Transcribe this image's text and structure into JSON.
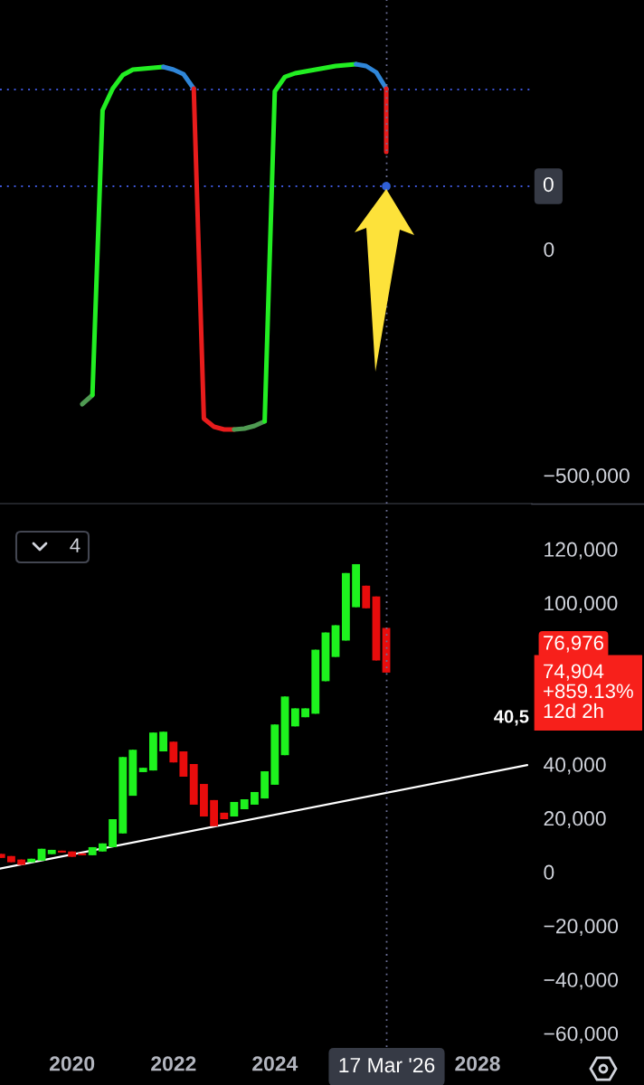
{
  "chart_data": [
    {
      "type": "line",
      "xlim": [
        "2018-07-31",
        "2029-01-26"
      ],
      "ylim": [
        -558000,
        556000
      ],
      "yticks": [
        {
          "value": 0,
          "label": "0"
        },
        {
          "value": -500000,
          "label": "−500,000"
        }
      ],
      "tick_labels": "y",
      "series": [
        {
          "color": "#4f9a52",
          "x": [
            "2020-03-14",
            "2020-05-27"
          ],
          "values": [
            -338000,
            -318000
          ]
        },
        {
          "color": "#22ee22",
          "x": [
            "2020-05-27",
            "2020-08-08",
            "2020-10-20",
            "2021-01-01",
            "2021-03-14",
            "2021-05-27",
            "2021-08-08",
            "2021-10-20"
          ],
          "values": [
            -318000,
            312000,
            360000,
            390000,
            402000,
            404000,
            406000,
            408000
          ]
        },
        {
          "color": "#2f86d8",
          "x": [
            "2021-10-20",
            "2022-01-01",
            "2022-03-14",
            "2022-05-27"
          ],
          "values": [
            408000,
            402000,
            392000,
            360000
          ]
        },
        {
          "color": "#e81c1c",
          "x": [
            "2022-05-27",
            "2022-08-08",
            "2022-10-20",
            "2023-01-01",
            "2023-03-14"
          ],
          "values": [
            360000,
            -370000,
            -388000,
            -394000,
            -394000
          ]
        },
        {
          "color": "#4f9a52",
          "x": [
            "2023-03-14",
            "2023-05-27",
            "2023-08-08",
            "2023-10-20"
          ],
          "values": [
            -394000,
            -392000,
            -386000,
            -376000
          ]
        },
        {
          "color": "#22ee22",
          "x": [
            "2023-10-20",
            "2024-01-01",
            "2024-03-14",
            "2024-05-27",
            "2024-08-08",
            "2024-10-20",
            "2025-01-01",
            "2025-03-14",
            "2025-05-27",
            "2025-08-08"
          ],
          "values": [
            -376000,
            354000,
            386000,
            394000,
            398000,
            402000,
            406000,
            410000,
            412000,
            414000
          ]
        },
        {
          "color": "#2f86d8",
          "x": [
            "2025-08-08",
            "2025-10-20",
            "2026-01-01",
            "2026-03-14"
          ],
          "values": [
            414000,
            410000,
            396000,
            360000
          ]
        },
        {
          "color": "#e81c1c",
          "x": [
            "2026-03-14",
            "2026-03-14"
          ],
          "values": [
            360000,
            220000
          ]
        },
        {
          "type": "scatter",
          "marker": "circle",
          "color": "#2f5fd6",
          "x": [
            "2026-03-14"
          ],
          "values": [
            144000
          ]
        }
      ],
      "ref_lines": [
        {
          "axis": "y",
          "value": 358000,
          "color": "#3d55d6",
          "line_style": "dotted"
        },
        {
          "axis": "y",
          "value": 144000,
          "color": "#3d55d6",
          "line_style": "dotted"
        },
        {
          "axis": "x",
          "value": "2026-03-17",
          "color": "#6b6f96",
          "line_style": "dotted"
        }
      ],
      "annotations": [
        "0"
      ]
    },
    {
      "type": "candlestick",
      "xlim": [
        "2018-07-31",
        "2029-01-26"
      ],
      "ylim": [
        -64300,
        136700
      ],
      "xticks": [
        {
          "value": "2020-01-01",
          "label": "2020"
        },
        {
          "value": "2022-01-01",
          "label": "2022"
        },
        {
          "value": "2024-01-01",
          "label": "2024"
        },
        {
          "value": "2028-01-01",
          "label": "2028"
        }
      ],
      "yticks": [
        {
          "value": 120000,
          "label": "120,000"
        },
        {
          "value": 100000,
          "label": "100,000"
        },
        {
          "value": 40000,
          "label": "40,000"
        },
        {
          "value": 20000,
          "label": "20,000"
        },
        {
          "value": 0,
          "label": "0"
        },
        {
          "value": -20000,
          "label": "−20,000"
        },
        {
          "value": -40000,
          "label": "−40,000"
        },
        {
          "value": -60000,
          "label": "−60,000"
        }
      ],
      "x": [
        "2018-08-08",
        "2018-10-20",
        "2019-01-01",
        "2019-03-14",
        "2019-05-27",
        "2019-08-08",
        "2019-10-20",
        "2020-01-01",
        "2020-03-14",
        "2020-05-27",
        "2020-08-08",
        "2020-10-20",
        "2021-01-01",
        "2021-03-14",
        "2021-05-27",
        "2021-08-08",
        "2021-10-20",
        "2022-01-01",
        "2022-03-14",
        "2022-05-27",
        "2022-08-08",
        "2022-10-20",
        "2023-01-01",
        "2023-03-14",
        "2023-05-27",
        "2023-08-08",
        "2023-10-20",
        "2024-01-01",
        "2024-03-14",
        "2024-05-27",
        "2024-08-08",
        "2024-10-20",
        "2025-01-01",
        "2025-03-14",
        "2025-05-27",
        "2025-08-08",
        "2025-10-20",
        "2026-01-01",
        "2026-03-14"
      ],
      "ohlc": [
        [
          7500,
          7500,
          6000,
          6000
        ],
        [
          6700,
          6700,
          4400,
          4400
        ],
        [
          5400,
          5400,
          3400,
          3400
        ],
        [
          4400,
          5700,
          4400,
          5700
        ],
        [
          5000,
          9400,
          5000,
          9400
        ],
        [
          7400,
          9000,
          7400,
          9000
        ],
        [
          8700,
          8700,
          8000,
          8000
        ],
        [
          8400,
          8400,
          6400,
          6400
        ],
        [
          7700,
          7700,
          7000,
          7000
        ],
        [
          7000,
          10000,
          7000,
          10000
        ],
        [
          8400,
          11400,
          8400,
          11400
        ],
        [
          10000,
          20400,
          10000,
          20400
        ],
        [
          15100,
          43500,
          15100,
          43500
        ],
        [
          29100,
          46200,
          29100,
          46200
        ],
        [
          37900,
          39500,
          37900,
          39500
        ],
        [
          38500,
          52600,
          38500,
          52600
        ],
        [
          45600,
          52900,
          45600,
          52900
        ],
        [
          49200,
          49200,
          41500,
          41500
        ],
        [
          45600,
          45600,
          36200,
          36200
        ],
        [
          40900,
          40900,
          25800,
          25800
        ],
        [
          33500,
          33500,
          21400,
          21400
        ],
        [
          27500,
          27500,
          17800,
          17800
        ],
        [
          22800,
          22800,
          20400,
          20400
        ],
        [
          21400,
          26800,
          21400,
          26800
        ],
        [
          24100,
          27800,
          24100,
          27800
        ],
        [
          25800,
          30500,
          25800,
          30500
        ],
        [
          28100,
          38200,
          28100,
          38200
        ],
        [
          33200,
          55600,
          33200,
          55600
        ],
        [
          44200,
          66000,
          44200,
          66000
        ],
        [
          54900,
          61600,
          54900,
          61600
        ],
        [
          58300,
          61600,
          58300,
          61600
        ],
        [
          59600,
          83400,
          59600,
          83400
        ],
        [
          71700,
          89800,
          71700,
          89800
        ],
        [
          80700,
          92500,
          80700,
          92500
        ],
        [
          86800,
          111900,
          86800,
          111900
        ],
        [
          99200,
          115200,
          99200,
          115200
        ],
        [
          107200,
          107200,
          98800,
          98800
        ],
        [
          103200,
          103200,
          79400,
          79400
        ],
        [
          91500,
          91500,
          74904,
          74904
        ]
      ],
      "colors": [
        "#e80c0c",
        "#e80c0c",
        "#e80c0c",
        "#1ef21e",
        "#1ef21e",
        "#1ef21e",
        "#e80c0c",
        "#e80c0c",
        "#e80c0c",
        "#1ef21e",
        "#1ef21e",
        "#1ef21e",
        "#1ef21e",
        "#1ef21e",
        "#1ef21e",
        "#1ef21e",
        "#1ef21e",
        "#e80c0c",
        "#e80c0c",
        "#e80c0c",
        "#e80c0c",
        "#e80c0c",
        "#e80c0c",
        "#1ef21e",
        "#1ef21e",
        "#1ef21e",
        "#1ef21e",
        "#1ef21e",
        "#1ef21e",
        "#1ef21e",
        "#1ef21e",
        "#1ef21e",
        "#1ef21e",
        "#1ef21e",
        "#1ef21e",
        "#1ef21e",
        "#e80c0c",
        "#e80c0c",
        "#e80c0c"
      ],
      "series": [
        {
          "type": "line",
          "color": "#ffffff",
          "x": [
            "2018-07-31",
            "2028-12-24"
          ],
          "values": [
            2000,
            40500
          ]
        }
      ],
      "ref_lines": [
        {
          "axis": "x",
          "value": "2026-03-17",
          "label": "17 Mar '26",
          "color": "#6b6f96",
          "line_style": "dotted"
        }
      ],
      "annotations": [
        "40,5",
        "76,976",
        "74,904",
        "+859.13%",
        "12d 2h",
        "4"
      ]
    }
  ]
}
